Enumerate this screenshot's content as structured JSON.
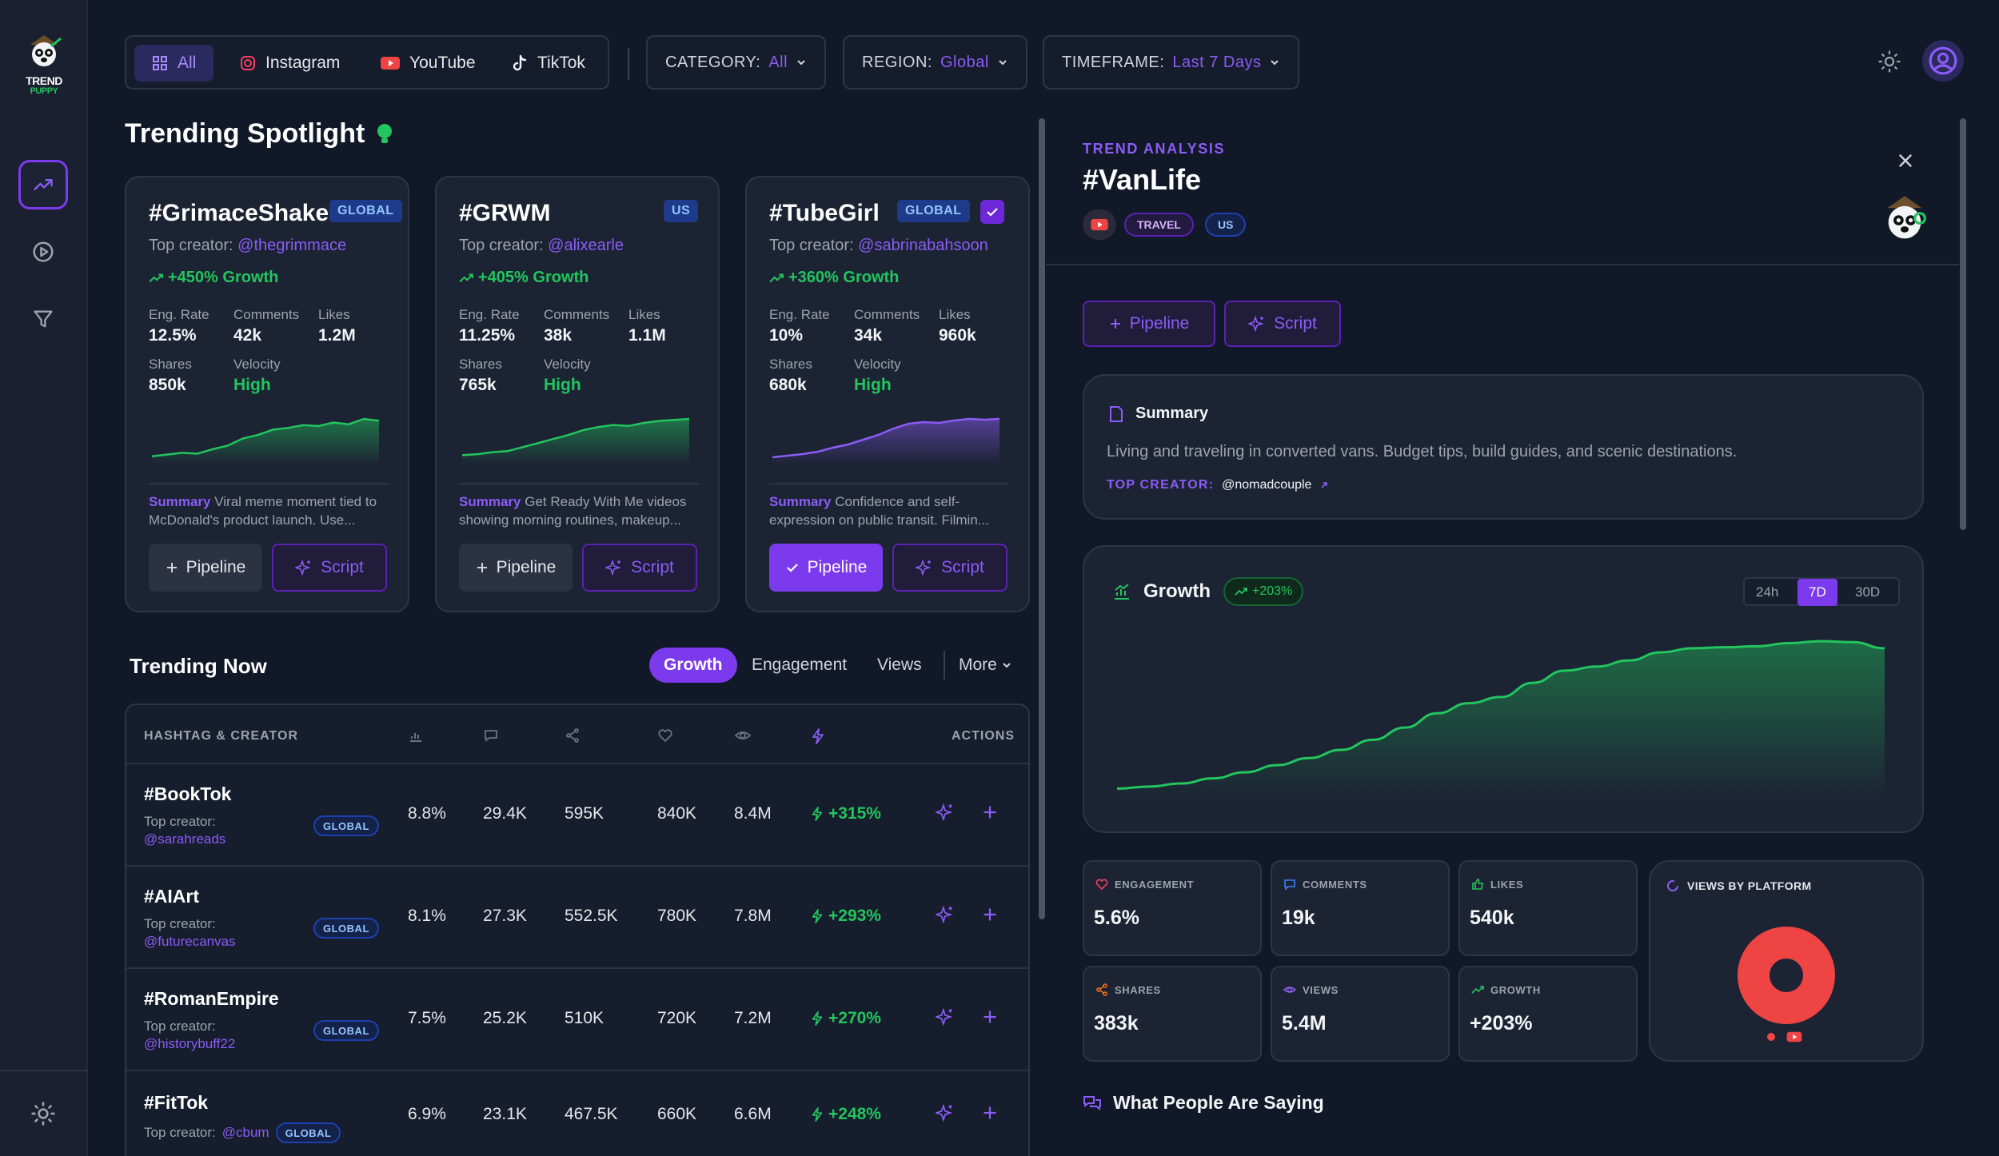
{
  "brand": {
    "line1": "TREND",
    "line2": "PUPPY"
  },
  "filters": {
    "platforms": [
      {
        "label": "All",
        "icon": "grid-icon"
      },
      {
        "label": "Instagram",
        "icon": "instagram-icon"
      },
      {
        "label": "YouTube",
        "icon": "youtube-icon"
      },
      {
        "label": "TikTok",
        "icon": "tiktok-icon"
      }
    ],
    "category": {
      "label": "CATEGORY:",
      "value": "All"
    },
    "region": {
      "label": "REGION:",
      "value": "Global"
    },
    "timeframe": {
      "label": "TIMEFRAME:",
      "value": "Last 7 Days"
    }
  },
  "spotlight": {
    "title": "Trending Spotlight",
    "labels": {
      "eng": "Eng. Rate",
      "comments": "Comments",
      "likes": "Likes",
      "shares": "Shares",
      "velocity": "Velocity",
      "summary": "Summary",
      "pipeline": "Pipeline",
      "script": "Script",
      "top_creator": "Top creator:"
    },
    "cards": [
      {
        "tag": "#GrimaceShake",
        "badge": "GLOBAL",
        "creator": "@thegrimmace",
        "growth": "+450% Growth",
        "eng": "12.5%",
        "comments": "42k",
        "likes": "1.2M",
        "shares": "850k",
        "velocity": "High",
        "summary": "Viral meme moment tied to McDonald's product launch. Use...",
        "color": "#22c55e",
        "trend": [
          10,
          12,
          14,
          13,
          18,
          22,
          30,
          34,
          40,
          42,
          45,
          44,
          48,
          46,
          52,
          50
        ]
      },
      {
        "tag": "#GRWM",
        "badge": "US",
        "creator": "@alixearle",
        "growth": "+405% Growth",
        "eng": "11.25%",
        "comments": "38k",
        "likes": "1.1M",
        "shares": "765k",
        "velocity": "High",
        "summary": "Get Ready With Me videos showing morning routines, makeup...",
        "color": "#22c55e",
        "trend": [
          10,
          11,
          13,
          14,
          18,
          22,
          26,
          30,
          35,
          38,
          40,
          39,
          42,
          44,
          45,
          46
        ]
      },
      {
        "tag": "#TubeGirl",
        "badge": "GLOBAL",
        "creator": "@sabrinabahsoon",
        "growth": "+360% Growth",
        "eng": "10%",
        "comments": "34k",
        "likes": "960k",
        "shares": "680k",
        "velocity": "High",
        "summary": "Confidence and self-expression on public transit. Filmin...",
        "color": "#8b5cf6",
        "trend": [
          10,
          12,
          14,
          17,
          22,
          26,
          32,
          38,
          46,
          52,
          54,
          53,
          56,
          58,
          57,
          58
        ]
      }
    ]
  },
  "trending_now": {
    "title": "Trending Now",
    "tabs": [
      "Growth",
      "Engagement",
      "Views",
      "More"
    ],
    "headers": {
      "hashtag": "HASHTAG & CREATOR",
      "actions": "ACTIONS"
    },
    "rows": [
      {
        "tag": "#BookTok",
        "creator_label": "Top creator:",
        "creator": "@sarahreads",
        "badge": "GLOBAL",
        "eng": "8.8%",
        "comments": "29.4K",
        "shares": "595K",
        "likes": "840K",
        "views": "8.4M",
        "growth": "+315%"
      },
      {
        "tag": "#AIArt",
        "creator_label": "Top creator:",
        "creator": "@futurecanvas",
        "badge": "GLOBAL",
        "eng": "8.1%",
        "comments": "27.3K",
        "shares": "552.5K",
        "likes": "780K",
        "views": "7.8M",
        "growth": "+293%"
      },
      {
        "tag": "#RomanEmpire",
        "creator_label": "Top creator:",
        "creator": "@historybuff22",
        "badge": "GLOBAL",
        "eng": "7.5%",
        "comments": "25.2K",
        "shares": "510K",
        "likes": "720K",
        "views": "7.2M",
        "growth": "+270%"
      },
      {
        "tag": "#FitTok",
        "creator_label": "Top creator:",
        "creator": "@cbum",
        "badge": "GLOBAL",
        "eng": "6.9%",
        "comments": "23.1K",
        "shares": "467.5K",
        "likes": "660K",
        "views": "6.6M",
        "growth": "+248%"
      }
    ]
  },
  "analysis": {
    "kicker": "TREND ANALYSIS",
    "title": "#VanLife",
    "tags": [
      "TRAVEL",
      "US"
    ],
    "pipeline": "Pipeline",
    "script": "Script",
    "summary_title": "Summary",
    "summary_text": "Living and traveling in converted vans. Budget tips, build guides, and scenic destinations.",
    "top_creator_label": "TOP CREATOR:",
    "top_creator": "@nomadcouple",
    "growth_title": "Growth",
    "growth_badge": "+203%",
    "timeframes": [
      "24h",
      "7D",
      "30D"
    ],
    "growth_series": [
      3,
      4,
      5.5,
      8,
      11,
      14.5,
      18,
      22,
      27,
      33,
      40,
      45,
      48,
      55,
      61,
      63,
      66,
      70,
      72,
      72.5,
      73,
      74.5,
      75.5,
      75,
      72
    ],
    "metrics": [
      {
        "label": "ENGAGEMENT",
        "value": "5.6%",
        "icon": "heart-icon",
        "color": "#f43f5e"
      },
      {
        "label": "COMMENTS",
        "value": "19k",
        "icon": "comment-icon",
        "color": "#3b82f6"
      },
      {
        "label": "LIKES",
        "value": "540k",
        "icon": "thumbs-up-icon",
        "color": "#22c55e"
      },
      {
        "label": "SHARES",
        "value": "383k",
        "icon": "share-icon",
        "color": "#f97316"
      },
      {
        "label": "VIEWS",
        "value": "5.4M",
        "icon": "eye-icon",
        "color": "#8b5cf6"
      },
      {
        "label": "GROWTH",
        "value": "+203%",
        "icon": "trend-up-icon",
        "color": "#22c55e"
      }
    ],
    "views_by_platform": "VIEWS BY PLATFORM",
    "people_saying": "What People Are Saying"
  },
  "colors": {
    "accent": "#7c3aed",
    "green": "#22c55e",
    "bg": "#111827",
    "youtube": "#ef4444"
  }
}
